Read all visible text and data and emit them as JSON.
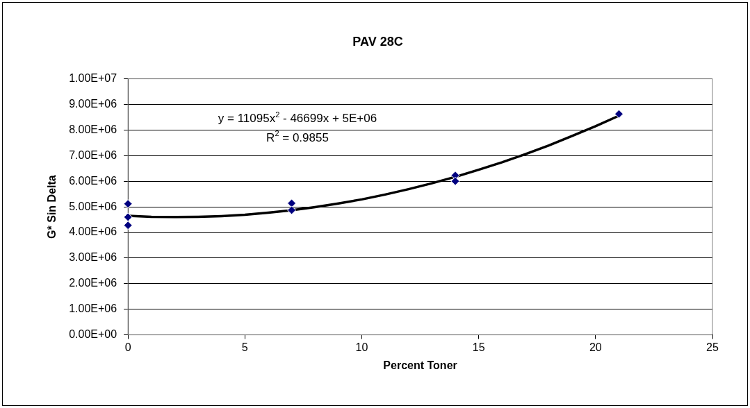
{
  "chart_data": {
    "type": "scatter",
    "title": "PAV 28C",
    "xlabel": "Percent Toner",
    "ylabel": "G* Sin Delta",
    "series": [
      {
        "type": "scatter",
        "marker": "diamond",
        "color": "#000080",
        "x": [
          0,
          0,
          0,
          7,
          7,
          14,
          14,
          21
        ],
        "values": [
          5120000,
          4600000,
          4280000,
          5140000,
          4870000,
          6230000,
          6000000,
          8630000
        ]
      },
      {
        "type": "line",
        "marker": "none",
        "color": "#000000",
        "x": [
          0,
          1,
          2,
          3,
          4,
          5,
          6,
          7,
          8,
          9,
          10,
          11,
          12,
          13,
          14,
          15,
          16,
          17,
          18,
          19,
          20,
          21
        ],
        "values": [
          4650000,
          4610000,
          4600000,
          4610000,
          4640000,
          4690000,
          4770000,
          4870000,
          4990000,
          5130000,
          5290000,
          5480000,
          5690000,
          5920000,
          6170000,
          6450000,
          6740000,
          7060000,
          7400000,
          7770000,
          8150000,
          8560000
        ]
      }
    ],
    "xlim": [
      0,
      25
    ],
    "xticks": [
      0,
      5,
      10,
      15,
      20,
      25
    ],
    "ylim": [
      0,
      10000000
    ],
    "yticks": [
      {
        "value": 0,
        "label": "0.00E+00"
      },
      {
        "value": 1000000,
        "label": "1.00E+06"
      },
      {
        "value": 2000000,
        "label": "2.00E+06"
      },
      {
        "value": 3000000,
        "label": "3.00E+06"
      },
      {
        "value": 4000000,
        "label": "4.00E+06"
      },
      {
        "value": 5000000,
        "label": "5.00E+06"
      },
      {
        "value": 6000000,
        "label": "6.00E+06"
      },
      {
        "value": 7000000,
        "label": "7.00E+06"
      },
      {
        "value": 8000000,
        "label": "8.00E+06"
      },
      {
        "value": 9000000,
        "label": "9.00E+06"
      },
      {
        "value": 10000000,
        "label": "1.00E+07"
      }
    ],
    "grid": "y",
    "legend": false,
    "annotations": [
      "y = 11095x$^{2}$ - 46699x + 5E+06",
      "R$^{2}$ = 0.9855"
    ]
  }
}
